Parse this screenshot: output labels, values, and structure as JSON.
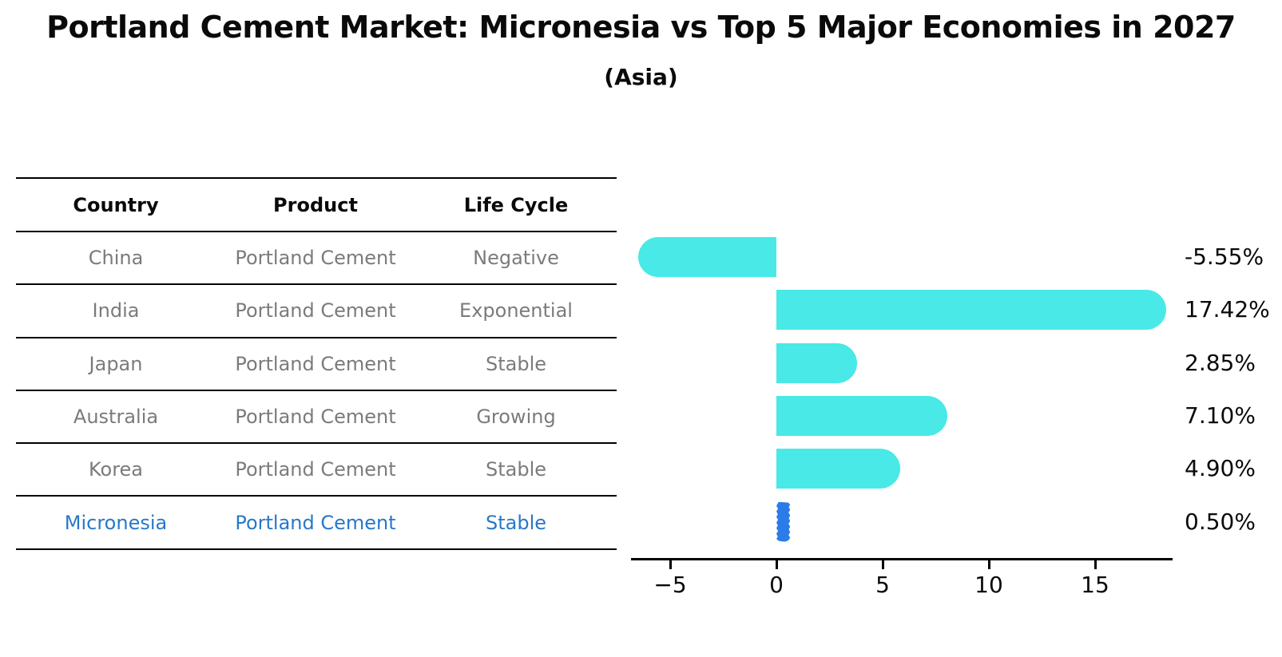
{
  "title": "Portland Cement Market: Micronesia vs Top 5 Major Economies in 2027",
  "subtitle": "(Asia)",
  "table": {
    "headers": [
      "Country",
      "Product",
      "Life Cycle"
    ],
    "rows": [
      {
        "country": "China",
        "product": "Portland Cement",
        "life_cycle": "Negative",
        "highlight": false
      },
      {
        "country": "India",
        "product": "Portland Cement",
        "life_cycle": "Exponential",
        "highlight": false
      },
      {
        "country": "Japan",
        "product": "Portland Cement",
        "life_cycle": "Stable",
        "highlight": false
      },
      {
        "country": "Australia",
        "product": "Portland Cement",
        "life_cycle": "Growing",
        "highlight": false
      },
      {
        "country": "Korea",
        "product": "Portland Cement",
        "life_cycle": "Stable",
        "highlight": false
      },
      {
        "country": "Micronesia",
        "product": "Portland Cement",
        "life_cycle": "Stable",
        "highlight": true
      }
    ]
  },
  "chart_data": {
    "type": "bar",
    "orientation": "horizontal",
    "title": "Portland Cement Market: Micronesia vs Top 5 Major Economies in 2027",
    "subtitle": "(Asia)",
    "categories": [
      "China",
      "India",
      "Japan",
      "Australia",
      "Korea",
      "Micronesia"
    ],
    "values": [
      -5.55,
      17.42,
      2.85,
      7.1,
      4.9,
      0.5
    ],
    "value_labels": [
      "-5.55%",
      "17.42%",
      "2.85%",
      "7.10%",
      "4.90%",
      "0.50%"
    ],
    "x_ticks": [
      -5,
      0,
      5,
      10,
      15
    ],
    "x_tick_labels": [
      "−5",
      "0",
      "5",
      "10",
      "15"
    ],
    "xlim": [
      -6.8,
      18.7
    ],
    "grid": false,
    "legend": false,
    "bar_color": "#48e9e6",
    "highlight_bar_color": "#2b7ce9",
    "highlight_index": 5,
    "highlight_text_color": "#2878c8"
  }
}
